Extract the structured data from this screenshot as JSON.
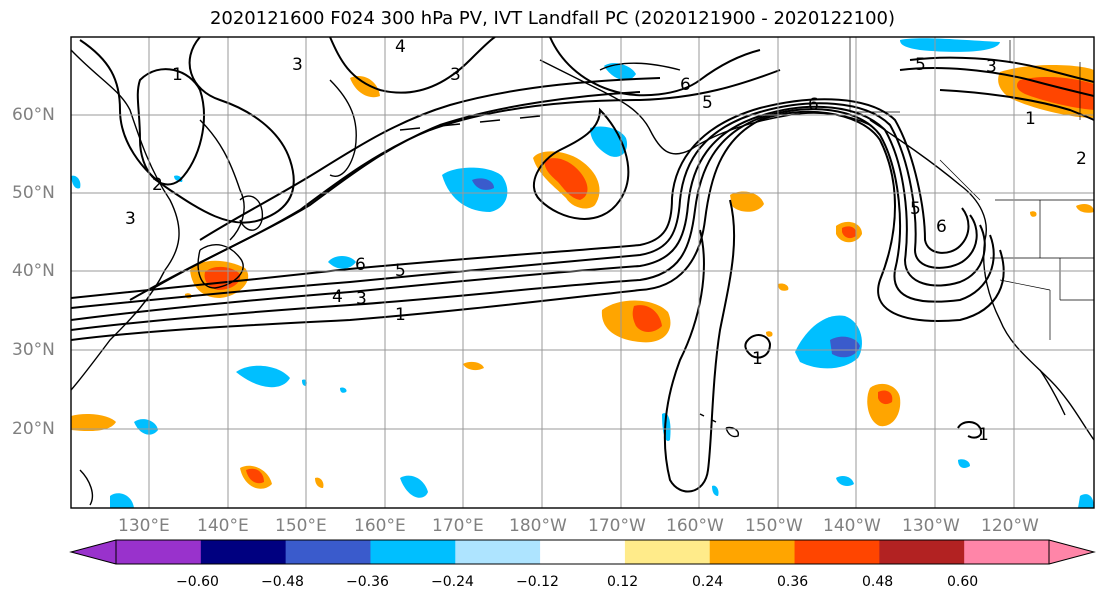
{
  "title": "2020121600 F024 300 hPa PV, IVT Landfall PC (2020121900 - 2020122100)",
  "axes": {
    "lat_labels": [
      "60°N",
      "50°N",
      "40°N",
      "30°N",
      "20°N"
    ],
    "lon_labels": [
      "130°E",
      "140°E",
      "150°E",
      "160°E",
      "170°E",
      "180°W",
      "170°W",
      "160°W",
      "150°W",
      "140°W",
      "130°W",
      "120°W"
    ]
  },
  "contour_labels": [
    {
      "text": "1"
    },
    {
      "text": "3"
    },
    {
      "text": "4"
    },
    {
      "text": "3"
    },
    {
      "text": "2"
    },
    {
      "text": "3"
    },
    {
      "text": "6"
    },
    {
      "text": "5"
    },
    {
      "text": "4"
    },
    {
      "text": "3"
    },
    {
      "text": "1"
    },
    {
      "text": "5"
    },
    {
      "text": "6"
    },
    {
      "text": "6"
    },
    {
      "text": "5"
    },
    {
      "text": "1"
    },
    {
      "text": "5"
    },
    {
      "text": "6"
    },
    {
      "text": "1"
    },
    {
      "text": "2"
    },
    {
      "text": "1"
    },
    {
      "text": "3"
    }
  ],
  "colorbar": {
    "colors": [
      "#9932CC",
      "#000080",
      "#3A5BCC",
      "#00BFFF",
      "#AEE4FF",
      "#FFFFFF",
      "#FFEB8A",
      "#FFA500",
      "#FF4500",
      "#B22222",
      "#FF85A8"
    ],
    "ticks": [
      "−0.60",
      "−0.48",
      "−0.36",
      "−0.24",
      "−0.12",
      "0.12",
      "0.24",
      "0.36",
      "0.48",
      "0.60"
    ]
  }
}
